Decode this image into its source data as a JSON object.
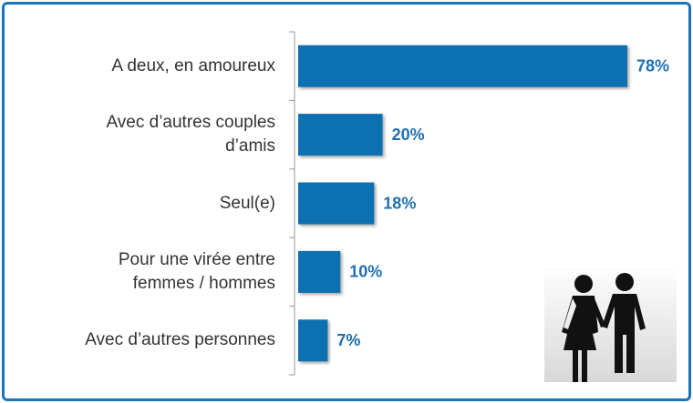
{
  "chart_data": {
    "type": "barh",
    "categories": [
      "A deux, en amoureux",
      "Avec d’autres couples\nd’amis",
      "Seul(e)",
      "Pour une virée entre\nfemmes / hommes",
      "Avec d’autres personnes"
    ],
    "values": [
      78,
      20,
      18,
      10,
      7
    ],
    "value_labels": [
      "78%",
      "20%",
      "18%",
      "10%",
      "7%"
    ],
    "color": "#0f70b0"
  }
}
